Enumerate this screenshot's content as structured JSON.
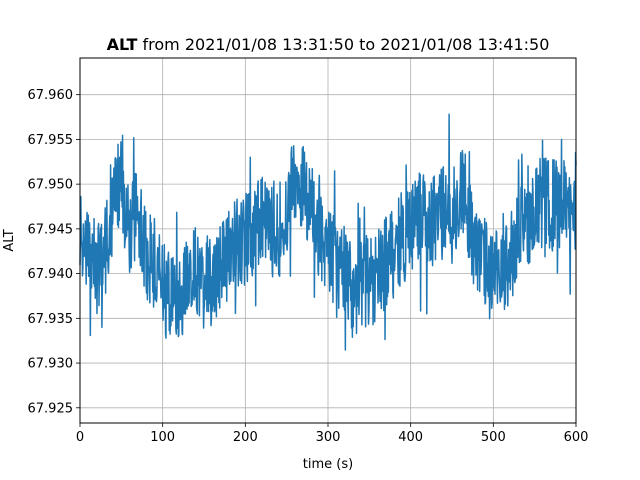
{
  "chart_data": {
    "type": "line",
    "title_bold": "ALT",
    "title_rest": " from 2021/01/08 13:31:50 to 2021/01/08 13:41:50",
    "xlabel": "time (s)",
    "ylabel": "ALT",
    "xlim": [
      0,
      600
    ],
    "ylim": [
      67.9233,
      67.9641
    ],
    "xticks": [
      0,
      100,
      200,
      300,
      400,
      500,
      600
    ],
    "yticks": [
      67.925,
      67.93,
      67.935,
      67.94,
      67.945,
      67.95,
      67.955,
      67.96
    ],
    "ytick_labels": [
      "67.925",
      "67.930",
      "67.935",
      "67.940",
      "67.945",
      "67.950",
      "67.955",
      "67.960"
    ],
    "grid": true,
    "series": [
      {
        "color": "#1f77b4",
        "x": [
          0,
          10,
          20,
          30,
          40,
          50,
          60,
          70,
          80,
          90,
          100,
          110,
          120,
          130,
          140,
          150,
          160,
          170,
          180,
          190,
          200,
          210,
          220,
          230,
          240,
          250,
          260,
          270,
          280,
          290,
          300,
          310,
          320,
          330,
          340,
          350,
          360,
          370,
          380,
          390,
          400,
          410,
          420,
          430,
          440,
          450,
          460,
          470,
          480,
          490,
          500,
          510,
          520,
          530,
          540,
          550,
          560,
          570,
          580,
          590,
          600
        ],
        "y": [
          67.9445,
          67.943,
          67.941,
          67.942,
          67.948,
          67.95,
          67.945,
          67.947,
          67.942,
          67.941,
          67.938,
          67.938,
          67.9375,
          67.939,
          67.94,
          67.939,
          67.9395,
          67.941,
          67.9425,
          67.943,
          67.944,
          67.944,
          67.946,
          67.945,
          67.9445,
          67.947,
          67.951,
          67.95,
          67.946,
          67.944,
          67.943,
          67.941,
          67.94,
          67.938,
          67.939,
          67.939,
          67.9395,
          67.941,
          67.943,
          67.944,
          67.945,
          67.947,
          67.945,
          67.946,
          67.947,
          67.946,
          67.95,
          67.947,
          67.942,
          67.941,
          67.9395,
          67.94,
          67.942,
          67.944,
          67.946,
          67.947,
          67.948,
          67.9475,
          67.948,
          67.947,
          67.946
        ]
      }
    ]
  }
}
